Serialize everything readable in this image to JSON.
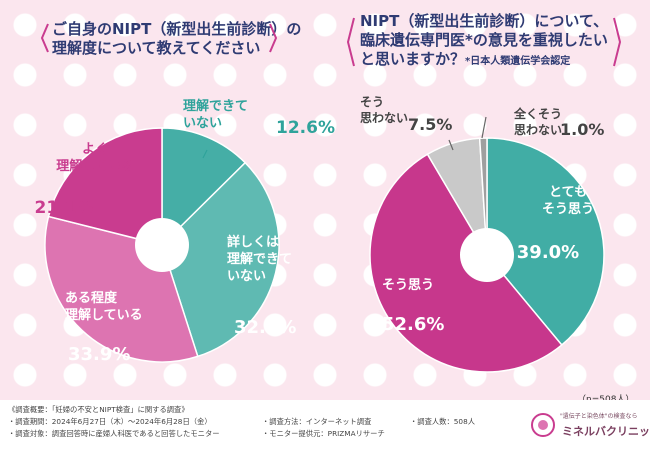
{
  "left_title": [
    "ご自身のNIPT（新型出生前診断）の",
    "理解度について教えてください"
  ],
  "right_title": [
    "NIPT（新型出生前診断）について、",
    "臨床遺伝専門医*の意見を重視したい",
    "と思いますか？"
  ],
  "right_title_note": "*日本人類遺伝学会認定",
  "n_note": "（n=508人）",
  "chart_data": [
    {
      "type": "pie",
      "title": "ご自身のNIPT（新型出生前診断）の理解度について教えてください",
      "slices": [
        {
          "label": "理解できていない",
          "label_lines": [
            "理解できて",
            "いない"
          ],
          "value": 12.6,
          "value_text": "12.6%",
          "color": "#45aea6"
        },
        {
          "label": "詳しくは理解できていない",
          "label_lines": [
            "詳しくは",
            "理解できて",
            "いない"
          ],
          "value": 32.5,
          "value_text": "32.5%",
          "color": "#5fbab2"
        },
        {
          "label": "ある程度理解している",
          "label_lines": [
            "ある程度",
            "理解している"
          ],
          "value": 33.9,
          "value_text": "33.9%",
          "color": "#dd74b1"
        },
        {
          "label": "よく理解している",
          "label_lines": [
            "よく",
            "理解している"
          ],
          "value": 21.1,
          "value_text": "21.1%",
          "color": "#c93c8f"
        }
      ]
    },
    {
      "type": "pie",
      "title": "NIPT（新型出生前診断）について、臨床遺伝専門医*の意見を重視したいと思いますか？",
      "slices": [
        {
          "label": "とてもそう思う",
          "label_lines": [
            "とても",
            "そう思う"
          ],
          "value": 39.0,
          "value_text": "39.0%",
          "color": "#41ada5"
        },
        {
          "label": "そう思う",
          "label_lines": [
            "そう思う"
          ],
          "value": 52.6,
          "value_text": "52.6%",
          "color": "#c7378c"
        },
        {
          "label": "そう思わない",
          "label_lines": [
            "そう",
            "思わない"
          ],
          "value": 7.5,
          "value_text": "7.5%",
          "color": "#c9c9c9"
        },
        {
          "label": "全くそう思わない",
          "label_lines": [
            "全くそう",
            "思わない"
          ],
          "value": 1.0,
          "value_text": "1.0%",
          "color": "#9f9f9f"
        }
      ]
    }
  ],
  "footer": {
    "survey_outline": "《調査概要：「妊婦の不安とNIPT検査」に関する調査》",
    "period": "・調査期間：2024年6月27日（木）〜2024年6月28日（金）",
    "method": "・調査方法：インターネット調査",
    "count": "・調査人数：508人",
    "target": "・調査対象：調査回答時に産婦人科医であると回答したモニター",
    "provider": "・モニター提供元：PRIZMAリサーチ",
    "logo_tagline": "\"遺伝子と染色体\"の検査なら",
    "logo_name": "ミネルバクリニック"
  }
}
